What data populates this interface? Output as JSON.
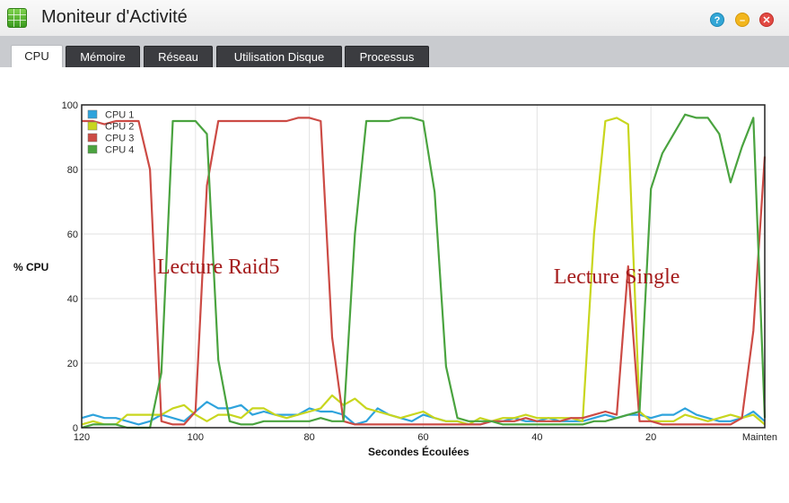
{
  "window": {
    "title": "Moniteur d'Activité",
    "help_glyph": "?",
    "minimize_glyph": "–",
    "close_glyph": "✕"
  },
  "tabs": [
    {
      "label": "CPU",
      "active": true
    },
    {
      "label": "Mémoire",
      "active": false
    },
    {
      "label": "Réseau",
      "active": false
    },
    {
      "label": "Utilisation Disque",
      "active": false
    },
    {
      "label": "Processus",
      "active": false
    }
  ],
  "chart_data": {
    "type": "line",
    "xlabel": "Secondes Écoulées",
    "ylabel": "% CPU",
    "xlim": [
      120,
      0
    ],
    "ylim": [
      0,
      100
    ],
    "x_ticks": [
      "120",
      "100",
      "80",
      "60",
      "40",
      "20",
      "Mainten"
    ],
    "x_tick_values": [
      120,
      100,
      80,
      60,
      40,
      20,
      0
    ],
    "y_ticks": [
      0,
      20,
      40,
      60,
      80,
      100
    ],
    "grid": true,
    "legend": "top-left",
    "x": [
      120,
      118,
      116,
      114,
      112,
      110,
      108,
      106,
      104,
      102,
      100,
      98,
      96,
      94,
      92,
      90,
      88,
      86,
      84,
      82,
      80,
      78,
      76,
      74,
      72,
      70,
      68,
      66,
      64,
      62,
      60,
      58,
      56,
      54,
      52,
      50,
      48,
      46,
      44,
      42,
      40,
      38,
      36,
      34,
      32,
      30,
      28,
      26,
      24,
      22,
      20,
      18,
      16,
      14,
      12,
      10,
      8,
      6,
      4,
      2,
      0
    ],
    "series": [
      {
        "name": "CPU 1",
        "color": "#2ea3dc",
        "values": [
          3,
          4,
          3,
          3,
          2,
          1,
          2,
          4,
          3,
          2,
          5,
          8,
          6,
          6,
          7,
          4,
          5,
          4,
          4,
          4,
          6,
          5,
          5,
          4,
          1,
          2,
          6,
          4,
          3,
          2,
          4,
          3,
          2,
          2,
          1,
          1,
          2,
          2,
          3,
          2,
          2,
          3,
          2,
          2,
          2,
          3,
          4,
          3,
          4,
          4,
          3,
          4,
          4,
          6,
          4,
          3,
          2,
          2,
          3,
          5,
          2
        ]
      },
      {
        "name": "CPU 2",
        "color": "#c8d61e",
        "values": [
          1,
          2,
          1,
          1,
          4,
          4,
          4,
          4,
          6,
          7,
          4,
          2,
          4,
          4,
          3,
          6,
          6,
          4,
          3,
          4,
          5,
          6,
          10,
          7,
          9,
          6,
          5,
          4,
          3,
          4,
          5,
          3,
          2,
          2,
          1,
          3,
          2,
          3,
          3,
          4,
          3,
          3,
          3,
          3,
          2,
          60,
          95,
          96,
          94,
          5,
          2,
          2,
          2,
          4,
          3,
          2,
          3,
          4,
          3,
          4,
          1
        ]
      },
      {
        "name": "CPU 3",
        "color": "#cc4b45",
        "values": [
          95,
          95,
          94,
          95,
          95,
          95,
          80,
          2,
          1,
          1,
          5,
          75,
          95,
          95,
          95,
          95,
          95,
          95,
          95,
          96,
          96,
          95,
          28,
          2,
          1,
          1,
          1,
          1,
          1,
          1,
          1,
          1,
          1,
          1,
          1,
          1,
          2,
          2,
          2,
          3,
          2,
          2,
          2,
          3,
          3,
          4,
          5,
          4,
          50,
          2,
          2,
          1,
          1,
          1,
          1,
          1,
          1,
          1,
          3,
          30,
          84
        ]
      },
      {
        "name": "CPU 4",
        "color": "#4aa33f",
        "values": [
          0,
          1,
          1,
          1,
          0,
          0,
          0,
          17,
          95,
          95,
          95,
          91,
          21,
          2,
          1,
          1,
          2,
          2,
          2,
          2,
          2,
          3,
          2,
          2,
          60,
          95,
          95,
          95,
          96,
          96,
          95,
          73,
          19,
          3,
          2,
          2,
          2,
          1,
          1,
          1,
          1,
          1,
          1,
          1,
          1,
          2,
          2,
          3,
          4,
          5,
          74,
          85,
          91,
          97,
          96,
          96,
          91,
          76,
          87,
          96,
          3
        ]
      }
    ],
    "annotations": [
      {
        "text": "Lecture Raid5",
        "x": 96,
        "y": 50
      },
      {
        "text": "Lecture Single",
        "x": 26,
        "y": 47
      }
    ]
  }
}
